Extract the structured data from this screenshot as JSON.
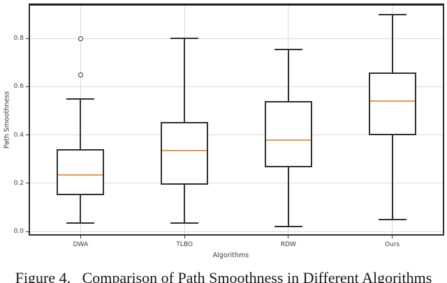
{
  "figure": {
    "caption": "Figure 4.   Comparison of Path Smoothness in Different Algorithms"
  },
  "chart_data": {
    "type": "boxplot",
    "title": "",
    "xlabel": "Algorithms",
    "ylabel": "Path Smoothness",
    "categories": [
      "DWA",
      "TLBO",
      "RDW",
      "Ours"
    ],
    "ytick_labels": [
      "0.0",
      "0.2",
      "0.4",
      "0.6",
      "0.8"
    ],
    "ytick_values": [
      0.0,
      0.2,
      0.4,
      0.6,
      0.8
    ],
    "ylim": [
      -0.017,
      0.945
    ],
    "grid": "both",
    "legend_position": "none",
    "series": [
      {
        "name": "DWA",
        "whislo": 0.035,
        "q1": 0.15,
        "med": 0.235,
        "q3": 0.34,
        "whishi": 0.55,
        "fliers": [
          0.65,
          0.8
        ]
      },
      {
        "name": "TLBO",
        "whislo": 0.035,
        "q1": 0.195,
        "med": 0.335,
        "q3": 0.455,
        "whishi": 0.8,
        "fliers": []
      },
      {
        "name": "RDW",
        "whislo": 0.02,
        "q1": 0.265,
        "med": 0.38,
        "q3": 0.54,
        "whishi": 0.755,
        "fliers": []
      },
      {
        "name": "Ours",
        "whislo": 0.05,
        "q1": 0.4,
        "med": 0.54,
        "q3": 0.66,
        "whishi": 0.9,
        "fliers": []
      }
    ],
    "colors": {
      "box_line": "#2f2f2f",
      "median": "#e5994f",
      "grid": "#d9d9d9",
      "spine": "#2e2e2e",
      "text": "#3a3a3a",
      "background": "#ffffff"
    }
  }
}
